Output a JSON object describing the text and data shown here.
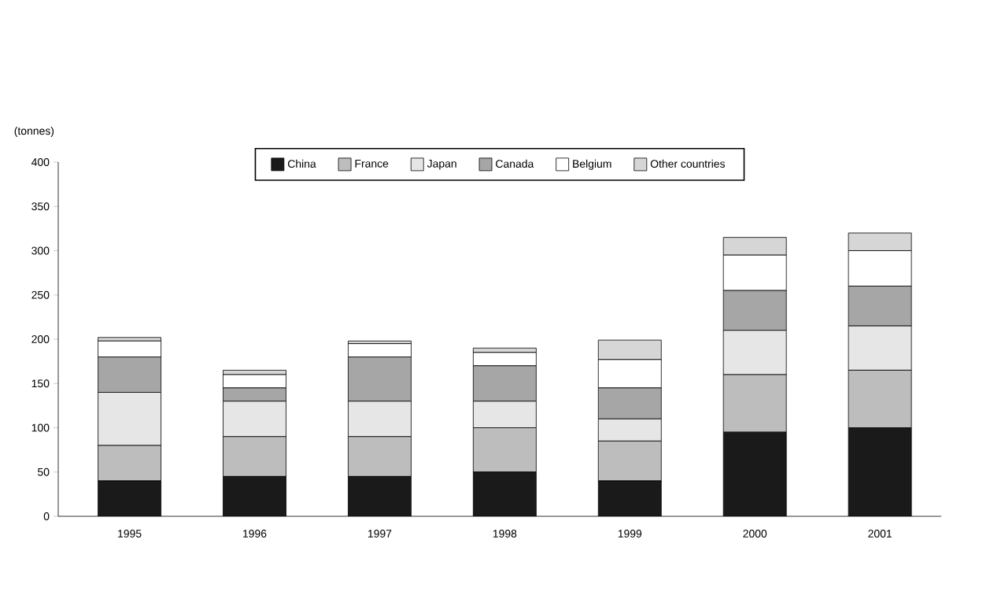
{
  "chart_data": {
    "type": "bar",
    "stacked": true,
    "ylabel": "(tonnes)",
    "categories": [
      "1995",
      "1996",
      "1997",
      "1998",
      "1999",
      "2000",
      "2001"
    ],
    "series": [
      {
        "name": "China",
        "color": "#1a1a1a",
        "values": [
          40,
          45,
          45,
          50,
          40,
          95,
          100
        ]
      },
      {
        "name": "France",
        "color": "#bdbdbd",
        "values": [
          40,
          45,
          45,
          50,
          45,
          65,
          65
        ]
      },
      {
        "name": "Japan",
        "color": "#e6e6e6",
        "values": [
          60,
          40,
          40,
          30,
          25,
          50,
          50
        ]
      },
      {
        "name": "Canada",
        "color": "#a6a6a6",
        "values": [
          40,
          15,
          50,
          40,
          35,
          45,
          45
        ]
      },
      {
        "name": "Belgium",
        "color": "#ffffff",
        "values": [
          18,
          15,
          15,
          15,
          32,
          40,
          40
        ]
      },
      {
        "name": "Other countries",
        "color": "#d6d6d6",
        "values": [
          4,
          5,
          3,
          5,
          22,
          20,
          20
        ]
      }
    ],
    "ylim": [
      0,
      400
    ],
    "yticks": [
      0,
      50,
      100,
      150,
      200,
      250,
      300,
      350,
      400
    ],
    "legend": "top"
  }
}
